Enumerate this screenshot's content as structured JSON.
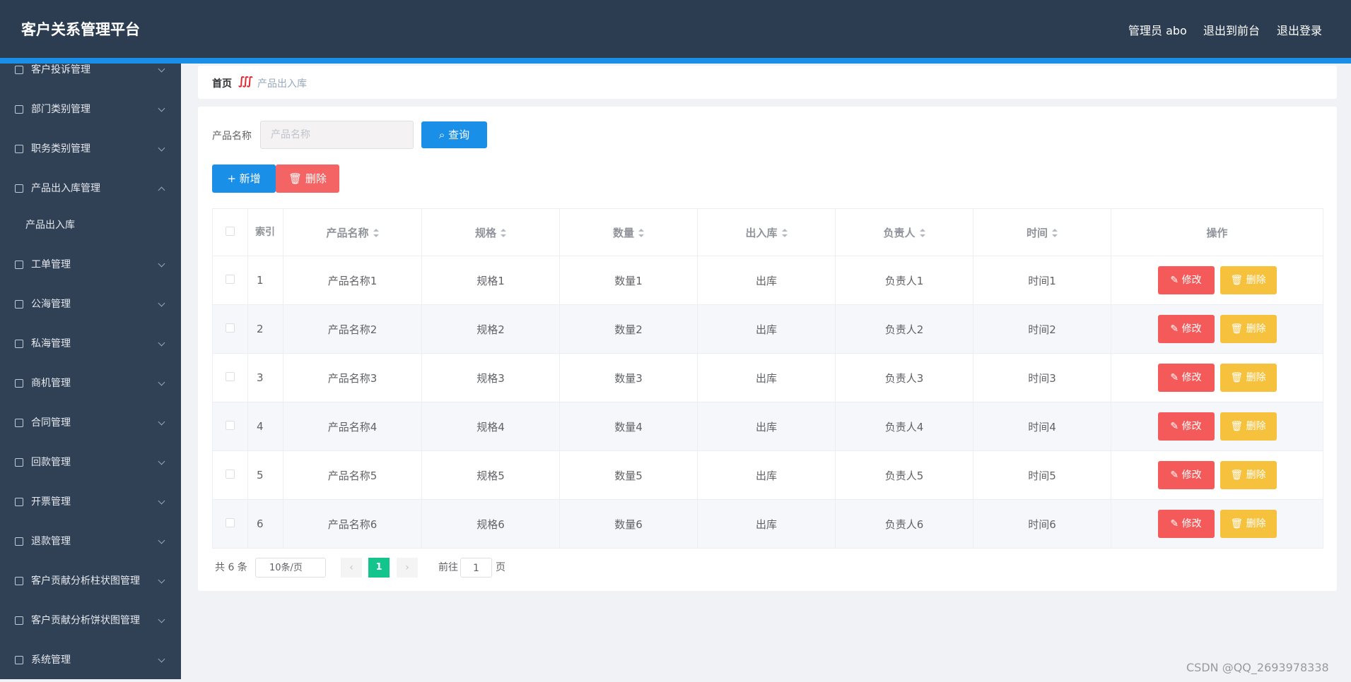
{
  "header": {
    "title": "客户关系管理平台",
    "links": [
      "管理员 abo",
      "退出到前台",
      "退出登录"
    ]
  },
  "sidebar": {
    "items": [
      {
        "label": "客户投诉管理",
        "open": false
      },
      {
        "label": "部门类别管理",
        "open": false
      },
      {
        "label": "职务类别管理",
        "open": false
      },
      {
        "label": "产品出入库管理",
        "open": true,
        "children": [
          "产品出入库"
        ]
      },
      {
        "label": "工单管理",
        "open": false
      },
      {
        "label": "公海管理",
        "open": false
      },
      {
        "label": "私海管理",
        "open": false
      },
      {
        "label": "商机管理",
        "open": false
      },
      {
        "label": "合同管理",
        "open": false
      },
      {
        "label": "回款管理",
        "open": false
      },
      {
        "label": "开票管理",
        "open": false
      },
      {
        "label": "退款管理",
        "open": false
      },
      {
        "label": "客户贡献分析柱状图管理",
        "open": false
      },
      {
        "label": "客户贡献分析饼状图管理",
        "open": false
      },
      {
        "label": "系统管理",
        "open": false
      }
    ]
  },
  "breadcrumb": {
    "home": "首页",
    "current": "产品出入库"
  },
  "search": {
    "label": "产品名称",
    "placeholder": "产品名称",
    "button": "查询"
  },
  "toolbar": {
    "add": "新增",
    "delete": "删除"
  },
  "table": {
    "headers": [
      "索引",
      "产品名称",
      "规格",
      "数量",
      "出入库",
      "负责人",
      "时间",
      "操作"
    ],
    "rows": [
      [
        "1",
        "产品名称1",
        "规格1",
        "数量1",
        "出库",
        "负责人1",
        "时间1"
      ],
      [
        "2",
        "产品名称2",
        "规格2",
        "数量2",
        "出库",
        "负责人2",
        "时间2"
      ],
      [
        "3",
        "产品名称3",
        "规格3",
        "数量3",
        "出库",
        "负责人3",
        "时间3"
      ],
      [
        "4",
        "产品名称4",
        "规格4",
        "数量4",
        "出库",
        "负责人4",
        "时间4"
      ],
      [
        "5",
        "产品名称5",
        "规格5",
        "数量5",
        "出库",
        "负责人5",
        "时间5"
      ],
      [
        "6",
        "产品名称6",
        "规格6",
        "数量6",
        "出库",
        "负责人6",
        "时间6"
      ]
    ],
    "actions": [
      "修改",
      "删除"
    ]
  },
  "pagination": {
    "total": "共 6 条",
    "page_size": "10条/页",
    "current": "1",
    "goto": "前往",
    "goto_value": "1",
    "page_suffix": "页"
  },
  "watermark": "CSDN @QQ_2693978338"
}
